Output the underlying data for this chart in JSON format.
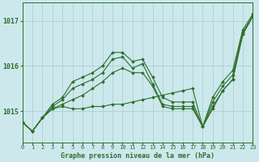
{
  "title": "Graphe pression niveau de la mer (hPa)",
  "bg_color": "#cce8ec",
  "grid_color": "#aacccc",
  "line_color": "#2d6e2d",
  "xlim": [
    0,
    23
  ],
  "ylim": [
    1014.3,
    1017.4
  ],
  "yticks": [
    1015,
    1016,
    1017
  ],
  "xticks": [
    0,
    1,
    2,
    3,
    4,
    5,
    6,
    7,
    8,
    9,
    10,
    11,
    12,
    13,
    14,
    15,
    16,
    17,
    18,
    19,
    20,
    21,
    22,
    23
  ],
  "series": [
    [
      1014.75,
      1014.55,
      1014.85,
      1015.05,
      1015.1,
      1015.05,
      1015.05,
      1015.1,
      1015.1,
      1015.15,
      1015.15,
      1015.2,
      1015.25,
      1015.3,
      1015.35,
      1015.4,
      1015.45,
      1015.5,
      1014.65,
      1015.05,
      1015.45,
      1015.7,
      1016.7,
      1017.1
    ],
    [
      1014.75,
      1014.55,
      1014.85,
      1015.05,
      1015.15,
      1015.25,
      1015.35,
      1015.5,
      1015.65,
      1015.85,
      1015.95,
      1015.85,
      1015.85,
      1015.55,
      1015.1,
      1015.05,
      1015.05,
      1015.05,
      1014.65,
      1015.1,
      1015.45,
      1015.7,
      1016.7,
      1017.1
    ],
    [
      1014.75,
      1014.55,
      1014.85,
      1015.1,
      1015.25,
      1015.5,
      1015.6,
      1015.7,
      1015.85,
      1016.15,
      1016.2,
      1015.95,
      1016.05,
      1015.6,
      1015.15,
      1015.1,
      1015.1,
      1015.1,
      1014.65,
      1015.2,
      1015.55,
      1015.8,
      1016.75,
      1017.1
    ],
    [
      1014.75,
      1014.55,
      1014.85,
      1015.15,
      1015.3,
      1015.65,
      1015.75,
      1015.85,
      1016.0,
      1016.3,
      1016.3,
      1016.1,
      1016.15,
      1015.75,
      1015.3,
      1015.2,
      1015.2,
      1015.2,
      1014.65,
      1015.3,
      1015.65,
      1015.9,
      1016.8,
      1017.15
    ]
  ]
}
